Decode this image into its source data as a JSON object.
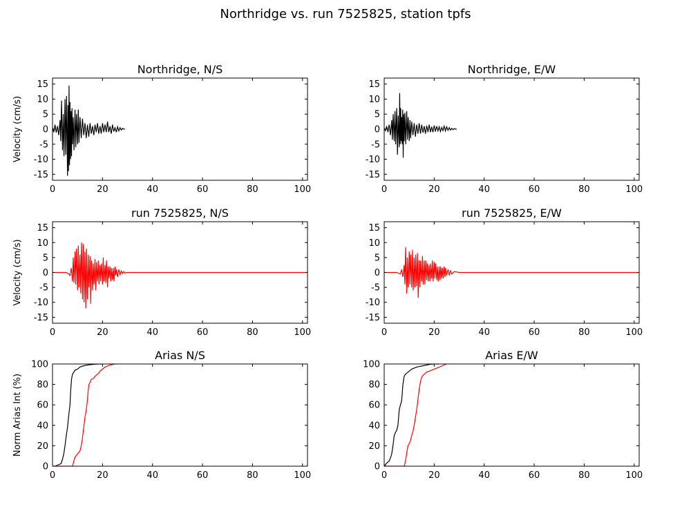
{
  "figure": {
    "title": "Northridge vs. run 7525825, station tpfs"
  },
  "chart_data": [
    {
      "type": "line",
      "title": "Northridge, N/S",
      "xlabel": "",
      "ylabel": "Velocity (cm/s)",
      "xlim": [
        0,
        102
      ],
      "ylim": [
        -17,
        17
      ],
      "xticks": [
        0,
        20,
        40,
        60,
        80,
        100
      ],
      "yticks": [
        -15,
        -10,
        -5,
        0,
        5,
        10,
        15
      ],
      "series": [
        {
          "color": "#000000",
          "x": [
            0,
            0.5,
            1,
            1.5,
            2,
            2.5,
            3,
            3.3,
            3.6,
            4,
            4.3,
            4.6,
            5,
            5.3,
            5.6,
            6,
            6.2,
            6.4,
            6.6,
            6.8,
            7,
            7.2,
            7.4,
            7.6,
            7.8,
            8,
            8.3,
            8.6,
            9,
            9.3,
            9.6,
            10,
            10.3,
            10.6,
            11,
            11.5,
            12,
            12.5,
            13,
            13.5,
            14,
            14.5,
            15,
            15.5,
            16,
            16.5,
            17,
            17.5,
            18,
            18.5,
            19,
            19.5,
            20,
            20.5,
            21,
            21.5,
            22,
            22.5,
            23,
            23.5,
            24,
            24.5,
            25,
            25.5,
            26,
            26.5,
            27,
            27.5,
            28,
            28.5,
            29
          ],
          "y": [
            0.5,
            -1,
            1.5,
            -1.2,
            1,
            -2,
            3,
            -4,
            9.5,
            -7,
            5,
            -9,
            10,
            -8.5,
            11,
            -15.5,
            8,
            -14,
            14.5,
            -12,
            9,
            -10,
            6,
            -9,
            7,
            -5,
            4,
            -7,
            6.5,
            -6,
            5,
            -5,
            6.5,
            -4.5,
            4,
            -3,
            3.5,
            -2,
            2,
            -3,
            1.5,
            -2.5,
            2,
            -1.5,
            1,
            -2,
            1.5,
            -1,
            2,
            -1.5,
            1,
            -1.5,
            2,
            -1,
            1.5,
            -1,
            2.5,
            -1,
            1,
            -1.5,
            1.5,
            -0.8,
            0.5,
            -1,
            0.8,
            -0.6,
            0.5,
            -0.3,
            0.3,
            0,
            0
          ]
        }
      ]
    },
    {
      "type": "line",
      "title": "Northridge, E/W",
      "xlabel": "",
      "ylabel": "",
      "xlim": [
        0,
        102
      ],
      "ylim": [
        -17,
        17
      ],
      "xticks": [
        0,
        20,
        40,
        60,
        80,
        100
      ],
      "yticks": [
        -15,
        -10,
        -5,
        0,
        5,
        10,
        15
      ],
      "series": [
        {
          "color": "#000000",
          "x": [
            0,
            0.5,
            1,
            1.5,
            2,
            2.5,
            3,
            3.3,
            3.6,
            4,
            4.3,
            4.6,
            5,
            5.3,
            5.6,
            6,
            6.2,
            6.4,
            6.6,
            6.8,
            7,
            7.2,
            7.4,
            7.6,
            7.8,
            8,
            8.3,
            8.6,
            9,
            9.3,
            9.6,
            10,
            10.3,
            10.6,
            11,
            11.5,
            12,
            12.5,
            13,
            13.5,
            14,
            14.5,
            15,
            15.5,
            16,
            16.5,
            17,
            17.5,
            18,
            18.5,
            19,
            19.5,
            20,
            20.5,
            21,
            21.5,
            22,
            22.5,
            23,
            23.5,
            24,
            24.5,
            25,
            25.5,
            26,
            26.5,
            27,
            27.5,
            28,
            28.5,
            29
          ],
          "y": [
            0.3,
            -0.5,
            1,
            -1,
            1.5,
            -2,
            3,
            -3.5,
            5,
            -4,
            6,
            -5,
            7,
            -8.5,
            4.5,
            -6,
            12,
            -5,
            7,
            -4,
            4,
            -5,
            6.5,
            -9.5,
            5,
            -4,
            5.5,
            -5,
            6,
            -3.5,
            4,
            -4,
            3,
            -3,
            2.5,
            -2,
            2,
            -2.5,
            1.5,
            -1.5,
            2,
            -1.5,
            1.5,
            -1.2,
            1,
            -1.5,
            1.2,
            -1,
            1.5,
            -1,
            0.8,
            -1,
            1.2,
            -0.8,
            1,
            -0.6,
            0.8,
            -0.8,
            0.6,
            -0.5,
            1,
            -0.6,
            0.8,
            -0.4,
            0.5,
            -0.3,
            0.3,
            -0.2,
            0.2,
            0,
            0
          ]
        }
      ]
    },
    {
      "type": "line",
      "title": "run 7525825, N/S",
      "xlabel": "",
      "ylabel": "Velocity (cm/s)",
      "xlim": [
        0,
        102
      ],
      "ylim": [
        -17,
        17
      ],
      "xticks": [
        0,
        20,
        40,
        60,
        80,
        100
      ],
      "yticks": [
        -15,
        -10,
        -5,
        0,
        5,
        10,
        15
      ],
      "series": [
        {
          "color": "#ff0000",
          "x": [
            0,
            4,
            5.5,
            6.5,
            7,
            7.5,
            8,
            8.3,
            8.6,
            9,
            9.3,
            9.6,
            10,
            10.3,
            10.6,
            11,
            11.3,
            11.6,
            12,
            12.3,
            12.6,
            13,
            13.3,
            13.6,
            14,
            14.3,
            14.6,
            15,
            15.3,
            15.6,
            16,
            16.3,
            16.6,
            17,
            17.3,
            17.6,
            18,
            18.3,
            18.6,
            19,
            19.3,
            19.6,
            20,
            20.3,
            20.6,
            21,
            21.3,
            21.6,
            22,
            22.3,
            22.6,
            23,
            23.3,
            23.6,
            24,
            24.3,
            24.6,
            25,
            25.3,
            25.6,
            26,
            26.5,
            27,
            27.5,
            28,
            28.5,
            29,
            30,
            40,
            102
          ],
          "y": [
            0,
            0,
            0,
            -0.5,
            -1,
            1.5,
            -3,
            5,
            -3.5,
            7,
            -4,
            8,
            -6,
            9,
            -5,
            6,
            -7,
            10,
            -9,
            9.5,
            -10,
            7,
            -12,
            8,
            -9,
            6,
            -5,
            5.5,
            -10.5,
            4,
            -6,
            3,
            -4,
            4.5,
            -6,
            3.5,
            -3,
            4,
            -4,
            2.5,
            -3,
            3,
            -4,
            5,
            -3,
            2.5,
            -3.5,
            4,
            -5,
            2,
            -2,
            2,
            -3,
            1.5,
            -2.5,
            1.5,
            -3,
            2,
            -1,
            1,
            -1.5,
            1,
            -0.8,
            0.5,
            -0.4,
            0.3,
            -0.2,
            0,
            0,
            0
          ]
        }
      ]
    },
    {
      "type": "line",
      "title": "run 7525825, E/W",
      "xlabel": "",
      "ylabel": "",
      "xlim": [
        0,
        102
      ],
      "ylim": [
        -17,
        17
      ],
      "xticks": [
        0,
        20,
        40,
        60,
        80,
        100
      ],
      "yticks": [
        -15,
        -10,
        -5,
        0,
        5,
        10,
        15
      ],
      "series": [
        {
          "color": "#ff0000",
          "x": [
            0,
            5,
            6.5,
            7,
            7.5,
            8,
            8.3,
            8.6,
            9,
            9.3,
            9.6,
            10,
            10.3,
            10.6,
            11,
            11.3,
            11.6,
            12,
            12.3,
            12.6,
            13,
            13.3,
            13.6,
            14,
            14.3,
            14.6,
            15,
            15.3,
            15.6,
            16,
            16.3,
            16.6,
            17,
            17.3,
            17.6,
            18,
            18.3,
            18.6,
            19,
            19.3,
            19.6,
            20,
            20.3,
            20.6,
            21,
            21.3,
            21.6,
            22,
            22.3,
            22.6,
            23,
            23.3,
            23.6,
            24,
            24.3,
            24.6,
            25,
            25.5,
            26,
            26.5,
            27,
            28,
            30,
            40,
            102
          ],
          "y": [
            0,
            0,
            -0.5,
            1,
            -1.5,
            2.5,
            -4,
            8.5,
            -7,
            5,
            -5,
            7,
            -4,
            6,
            -5,
            7.5,
            -6,
            5,
            -5,
            6,
            -4.5,
            6.5,
            -8.5,
            4,
            -5,
            4,
            -3,
            5.5,
            -4,
            4,
            -4,
            4,
            -2.5,
            3,
            -3,
            2.5,
            -3,
            3,
            -2,
            4,
            -3,
            3.5,
            -2,
            3,
            -2.5,
            2,
            -3,
            2,
            -2.5,
            2,
            -2,
            1.5,
            -2,
            2,
            -1.5,
            1.5,
            -1,
            1,
            -0.8,
            0.6,
            -0.5,
            0.3,
            0,
            0,
            0
          ]
        }
      ]
    },
    {
      "type": "line",
      "title": "Arias N/S",
      "xlabel": "",
      "ylabel": "Norm Arias Int (%)",
      "xlim": [
        0,
        102
      ],
      "ylim": [
        0,
        100
      ],
      "xticks": [
        0,
        20,
        40,
        60,
        80,
        100
      ],
      "yticks": [
        0,
        20,
        40,
        60,
        80,
        100
      ],
      "series": [
        {
          "color": "#000000",
          "x": [
            0,
            1,
            2,
            3,
            3.5,
            4,
            4.5,
            5,
            5.5,
            6,
            6.5,
            7,
            7.3,
            7.6,
            8,
            8.5,
            9,
            10,
            11,
            12,
            13,
            14,
            15,
            16,
            17,
            18,
            19,
            20
          ],
          "y": [
            0,
            0,
            1,
            2,
            3,
            7,
            12,
            20,
            30,
            38,
            50,
            60,
            75,
            85,
            90,
            92,
            94,
            95,
            97,
            98,
            98.5,
            99,
            99.3,
            99.6,
            99.8,
            99.9,
            100,
            100
          ]
        },
        {
          "color": "#ff0000",
          "x": [
            0,
            8,
            8.5,
            9,
            10,
            11,
            11.5,
            12,
            12.5,
            13,
            13.5,
            14,
            14.3,
            14.6,
            15,
            15.5,
            16,
            16.5,
            17,
            17.5,
            18,
            18.5,
            19,
            20,
            21,
            22,
            23,
            24,
            25,
            26
          ],
          "y": [
            0,
            0,
            5,
            9,
            12,
            15,
            20,
            28,
            38,
            48,
            55,
            65,
            75,
            80,
            82,
            85,
            85.5,
            86,
            88,
            89,
            90,
            91,
            93,
            95,
            97,
            98,
            99,
            99.5,
            100,
            100
          ]
        }
      ]
    },
    {
      "type": "line",
      "title": "Arias E/W",
      "xlabel": "",
      "ylabel": "",
      "xlim": [
        0,
        102
      ],
      "ylim": [
        0,
        100
      ],
      "xticks": [
        0,
        20,
        40,
        60,
        80,
        100
      ],
      "yticks": [
        0,
        20,
        40,
        60,
        80,
        100
      ],
      "series": [
        {
          "color": "#000000",
          "x": [
            0,
            1,
            1.5,
            2,
            2.5,
            3,
            3.5,
            4,
            4.5,
            5,
            5.5,
            6,
            6.5,
            7,
            7.5,
            8,
            8.5,
            9,
            9.5,
            10,
            11,
            12,
            13,
            14,
            15,
            16,
            17,
            18,
            19,
            20,
            22
          ],
          "y": [
            0,
            3,
            4,
            5,
            8,
            12,
            20,
            30,
            33,
            35,
            40,
            55,
            60,
            64,
            80,
            88,
            90,
            91,
            92,
            93,
            95,
            96,
            97,
            97.5,
            98,
            98.5,
            99,
            99.5,
            99.8,
            100,
            100
          ]
        },
        {
          "color": "#ff0000",
          "x": [
            0,
            8,
            8.5,
            9,
            9.5,
            10,
            10.5,
            11,
            11.5,
            12,
            12.5,
            13,
            13.5,
            14,
            14.5,
            15,
            15.5,
            16,
            17,
            18,
            19,
            20,
            21,
            22,
            23,
            24,
            25
          ],
          "y": [
            0,
            0,
            5,
            13,
            20,
            22,
            25,
            30,
            34,
            40,
            48,
            55,
            65,
            75,
            83,
            87,
            89,
            90,
            92,
            93,
            94,
            95,
            96,
            97,
            98,
            99,
            100
          ]
        }
      ]
    }
  ]
}
